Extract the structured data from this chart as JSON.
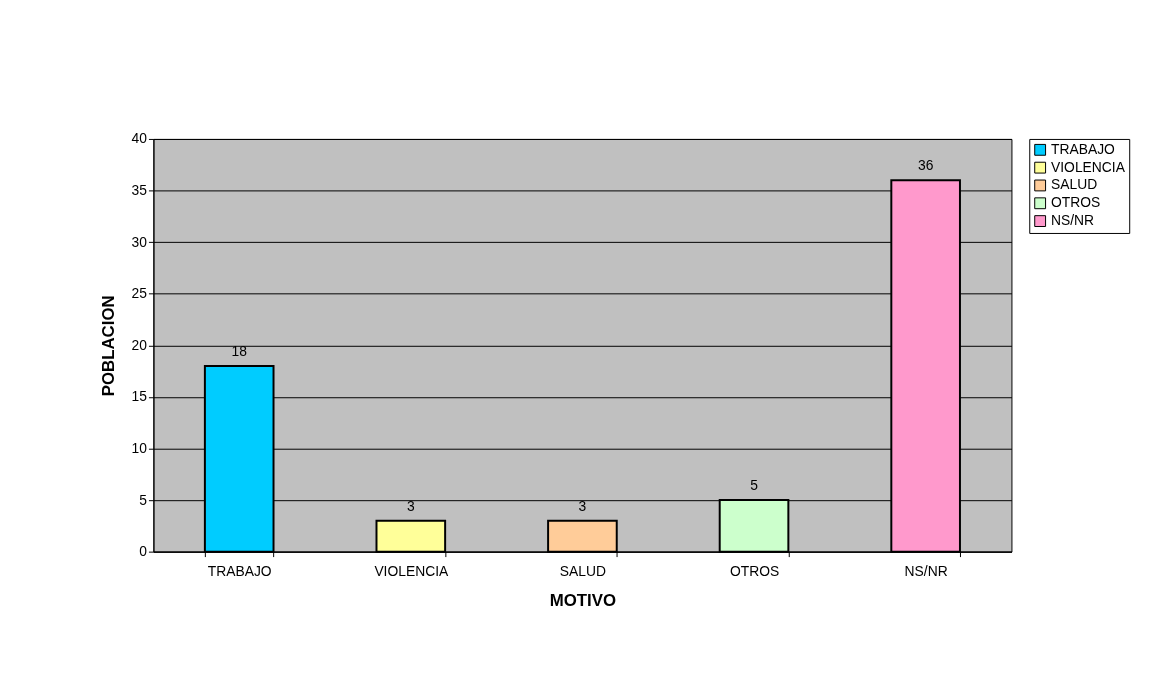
{
  "chart_data": {
    "type": "bar",
    "xlabel": "MOTIVO",
    "ylabel": "POBLACION",
    "categories": [
      "TRABAJO",
      "VIOLENCIA",
      "SALUD",
      "OTROS",
      "NS/NR"
    ],
    "series": [
      {
        "name": "TRABAJO",
        "color": "#00ccff",
        "values": [
          18,
          null,
          null,
          null,
          null
        ]
      },
      {
        "name": "VIOLENCIA",
        "color": "#ffff99",
        "values": [
          null,
          3,
          null,
          null,
          null
        ]
      },
      {
        "name": "SALUD",
        "color": "#ffcc99",
        "values": [
          null,
          null,
          3,
          null,
          null
        ]
      },
      {
        "name": "OTROS",
        "color": "#ccffcc",
        "values": [
          null,
          null,
          null,
          5,
          null
        ]
      },
      {
        "name": "NS/NR",
        "color": "#ff99cc",
        "values": [
          null,
          null,
          null,
          null,
          36
        ]
      }
    ],
    "ylim": [
      0,
      40
    ],
    "yticks": [
      0,
      5,
      10,
      15,
      20,
      25,
      30,
      35,
      40
    ],
    "grid": "y",
    "legend": "right",
    "data_labels": true
  }
}
